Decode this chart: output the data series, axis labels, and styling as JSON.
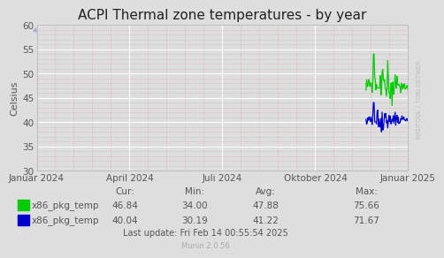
{
  "title": "ACPI Thermal zone temperatures - by year",
  "ylabel": "Celsius",
  "ylim": [
    30,
    60
  ],
  "yticks": [
    30,
    35,
    40,
    45,
    50,
    55,
    60
  ],
  "xtick_labels": [
    "Januar 2024",
    "April 2024",
    "Juli 2024",
    "Oktober 2024",
    "Januar 2025"
  ],
  "xtick_positions": [
    0.0,
    0.25,
    0.5,
    0.75,
    1.0
  ],
  "bg_color": "#dedede",
  "plot_bg_color": "#dedede",
  "grid_major_color": "#ffffff",
  "grid_minor_color": "#cc9999",
  "line1_color": "#00cc00",
  "line2_color": "#0000cc",
  "legend": [
    {
      "label": "x86_pkg_temp",
      "color": "#00cc00",
      "cur": "46.84",
      "min": "34.00",
      "avg": "47.88",
      "max": "75.66"
    },
    {
      "label": "x86_pkg_temp",
      "color": "#0000cc",
      "cur": "40.04",
      "min": "30.19",
      "avg": "41.22",
      "max": "71.67"
    }
  ],
  "footer": "Last update: Fri Feb 14 00:55:54 2025",
  "munin_version": "Munin 2.0.56",
  "watermark": "RRDTOOL / TOBI OETIKER",
  "title_fontsize": 11,
  "axis_fontsize": 7.5,
  "legend_fontsize": 7.5,
  "footer_fontsize": 7,
  "munin_fontsize": 6,
  "watermark_fontsize": 5,
  "text_color": "#555555",
  "arrow_color": "#aaaadd"
}
